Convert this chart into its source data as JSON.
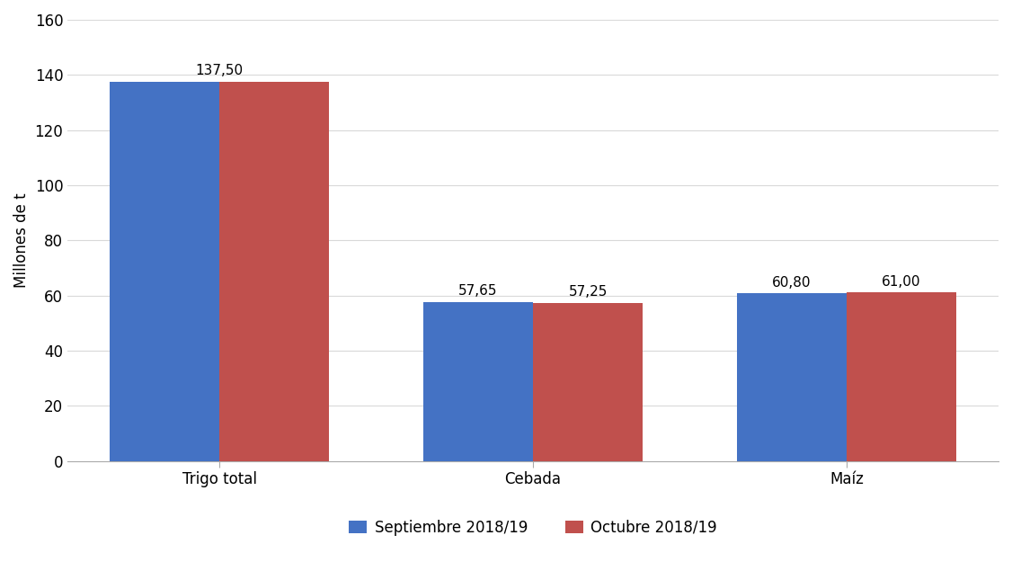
{
  "categories": [
    "Trigo total",
    "Cebada",
    "Maíz"
  ],
  "septiembre_values": [
    137.5,
    57.65,
    60.8
  ],
  "octubre_values": [
    137.5,
    57.25,
    61.0
  ],
  "septiembre_label": "Septiembre 2018/19",
  "octubre_label": "Octubre 2018/19",
  "septiembre_color": "#4472C4",
  "octubre_color": "#C0504D",
  "ylabel": "Millones de t",
  "ylim": [
    0,
    160
  ],
  "yticks": [
    0,
    20,
    40,
    60,
    80,
    100,
    120,
    140,
    160
  ],
  "bar_width": 0.35,
  "background_color": "#ffffff",
  "grid_color": "#d9d9d9",
  "label_fontsize": 12,
  "tick_fontsize": 12,
  "annotation_fontsize": 11,
  "legend_fontsize": 12
}
